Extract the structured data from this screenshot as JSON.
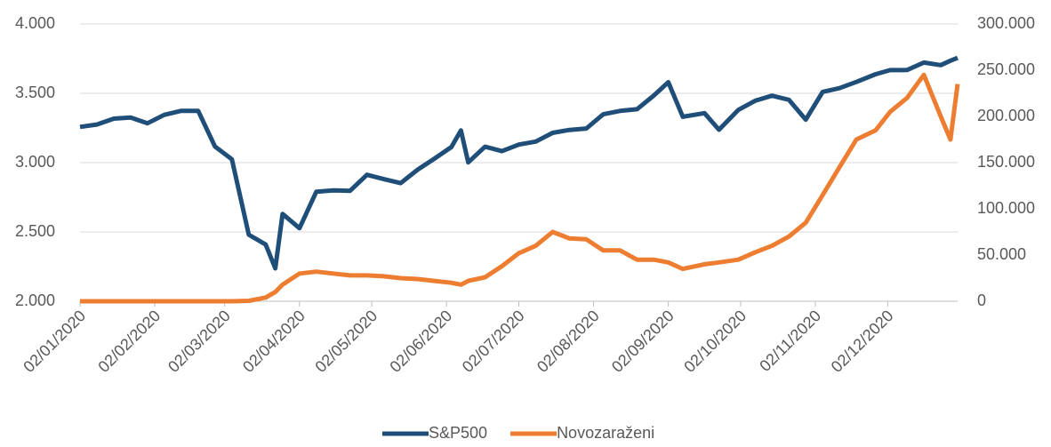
{
  "chart_data": {
    "type": "line",
    "x": [
      "02/01/2020",
      "09/01/2020",
      "16/01/2020",
      "23/01/2020",
      "30/01/2020",
      "06/02/2020",
      "13/02/2020",
      "20/02/2020",
      "27/02/2020",
      "05/03/2020",
      "12/03/2020",
      "19/03/2020",
      "23/03/2020",
      "26/03/2020",
      "02/04/2020",
      "09/04/2020",
      "16/04/2020",
      "23/04/2020",
      "30/04/2020",
      "07/05/2020",
      "14/05/2020",
      "21/05/2020",
      "28/05/2020",
      "04/06/2020",
      "08/06/2020",
      "11/06/2020",
      "18/06/2020",
      "25/06/2020",
      "02/07/2020",
      "09/07/2020",
      "16/07/2020",
      "23/07/2020",
      "30/07/2020",
      "06/08/2020",
      "13/08/2020",
      "20/08/2020",
      "27/08/2020",
      "02/09/2020",
      "08/09/2020",
      "17/09/2020",
      "23/09/2020",
      "01/10/2020",
      "08/10/2020",
      "15/10/2020",
      "22/10/2020",
      "29/10/2020",
      "05/11/2020",
      "12/11/2020",
      "19/11/2020",
      "27/11/2020",
      "03/12/2020",
      "10/12/2020",
      "17/12/2020",
      "24/12/2020",
      "28/12/2020",
      "31/12/2020"
    ],
    "series": [
      {
        "name": "S&P500",
        "color": "#1f4e79",
        "values": [
          3258,
          3275,
          3317,
          3325,
          3284,
          3345,
          3374,
          3373,
          3116,
          3024,
          2480,
          2409,
          2237,
          2630,
          2527,
          2790,
          2800,
          2797,
          2912,
          2881,
          2852,
          2949,
          3029,
          3112,
          3232,
          3002,
          3115,
          3083,
          3130,
          3152,
          3215,
          3236,
          3246,
          3349,
          3373,
          3385,
          3484,
          3580,
          3331,
          3357,
          3237,
          3380,
          3446,
          3483,
          3453,
          3310,
          3510,
          3537,
          3582,
          3638,
          3667,
          3668,
          3722,
          3703,
          3735,
          3756
        ]
      },
      {
        "name": "Novozaraženi",
        "color": "#ed7d31",
        "axis": "y2",
        "values": [
          0,
          0,
          0,
          0,
          0,
          0,
          0,
          0,
          0,
          0,
          500,
          4000,
          10000,
          18000,
          30000,
          32000,
          30000,
          28000,
          28000,
          27000,
          25000,
          24000,
          22000,
          20000,
          18000,
          22000,
          26000,
          38000,
          52000,
          60000,
          75000,
          68000,
          67000,
          55000,
          55000,
          45000,
          45000,
          42000,
          35000,
          40000,
          42000,
          45000,
          53000,
          60000,
          70000,
          85000,
          115000,
          145000,
          175000,
          185000,
          205000,
          220000,
          245000,
          200000,
          175000,
          235000
        ]
      }
    ],
    "xlim": [
      "02/01/2020",
      "31/12/2020"
    ],
    "xticks": [
      "02/01/2020",
      "02/02/2020",
      "02/03/2020",
      "02/04/2020",
      "02/05/2020",
      "02/06/2020",
      "02/07/2020",
      "02/08/2020",
      "02/09/2020",
      "02/10/2020",
      "02/11/2020",
      "02/12/2020"
    ],
    "ylim": [
      2000,
      4000
    ],
    "yticks": [
      {
        "value": 2000,
        "label": "2.000"
      },
      {
        "value": 2500,
        "label": "2.500"
      },
      {
        "value": 3000,
        "label": "3.000"
      },
      {
        "value": 3500,
        "label": "3.500"
      },
      {
        "value": 4000,
        "label": "4.000"
      }
    ],
    "y2lim": [
      0,
      300000
    ],
    "y2ticks": [
      0,
      {
        "value": 50000,
        "label": "50.000"
      },
      {
        "value": 100000,
        "label": "100.000"
      },
      {
        "value": 150000,
        "label": "150.000"
      },
      {
        "value": 200000,
        "label": "200.000"
      },
      {
        "value": 250000,
        "label": "250.000"
      },
      {
        "value": 300000,
        "label": "300.000"
      }
    ],
    "grid": true,
    "legend": "bottom"
  }
}
